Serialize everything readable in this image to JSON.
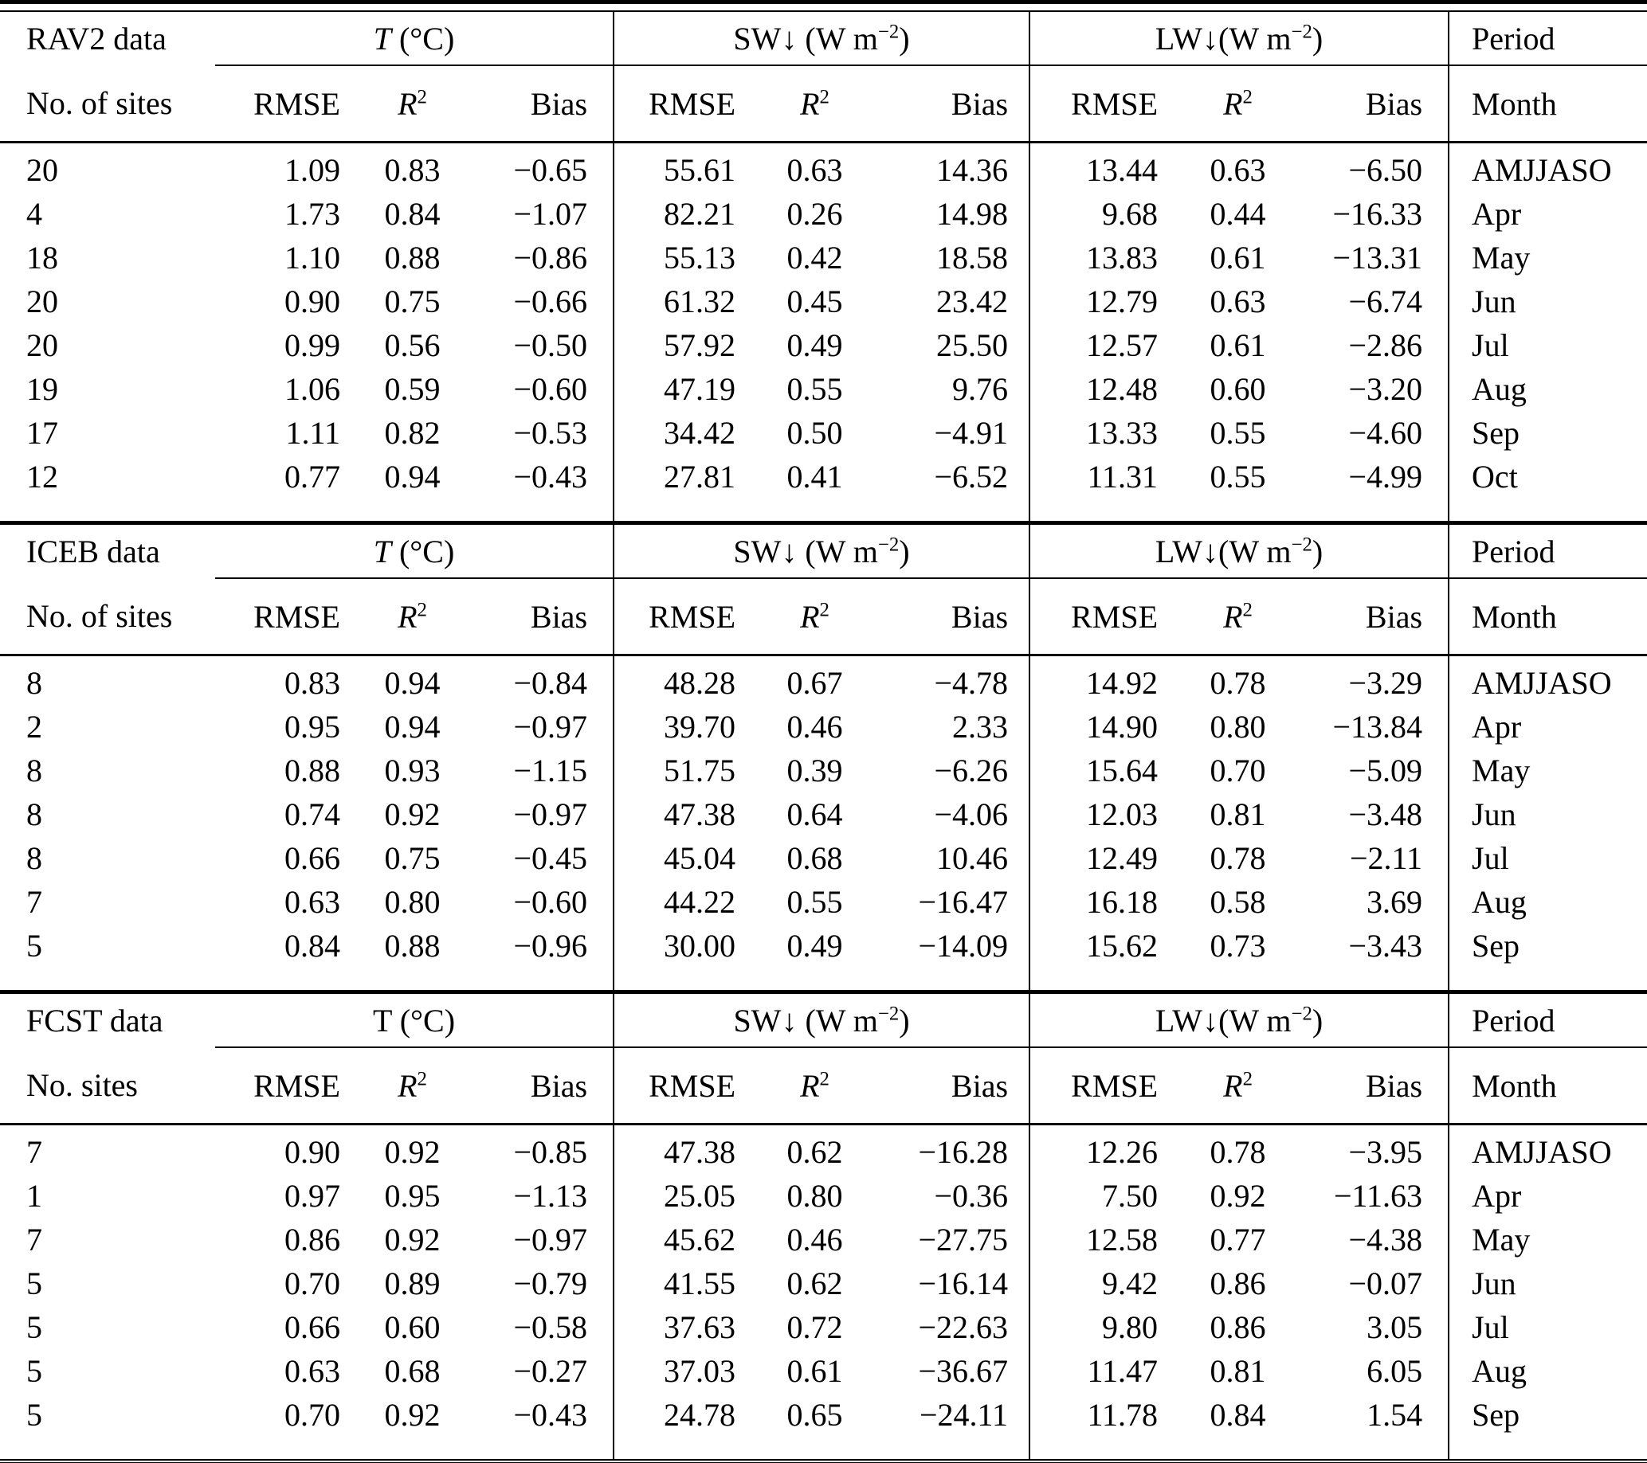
{
  "table": {
    "columns": {
      "rmse": "RMSE",
      "r2_base": "R",
      "r2_sup": "2",
      "bias": "Bias"
    },
    "groups": {
      "t_base": "T",
      "t_unit": "(°C)",
      "sw_prefix": "SW↓ (W m",
      "sw_sup": "−2",
      "sw_suffix": ")",
      "lw_prefix": "LW↓(W m",
      "lw_sup": "−2",
      "lw_suffix": ")",
      "period": "Period",
      "month": "Month"
    },
    "sections": [
      {
        "label": "RAV2 data",
        "sites_label": "No. of sites",
        "rows": [
          [
            "20",
            "1.09",
            "0.83",
            "−0.65",
            "55.61",
            "0.63",
            "14.36",
            "13.44",
            "0.63",
            "−6.50",
            "AMJJASO"
          ],
          [
            "4",
            "1.73",
            "0.84",
            "−1.07",
            "82.21",
            "0.26",
            "14.98",
            "9.68",
            "0.44",
            "−16.33",
            "Apr"
          ],
          [
            "18",
            "1.10",
            "0.88",
            "−0.86",
            "55.13",
            "0.42",
            "18.58",
            "13.83",
            "0.61",
            "−13.31",
            "May"
          ],
          [
            "20",
            "0.90",
            "0.75",
            "−0.66",
            "61.32",
            "0.45",
            "23.42",
            "12.79",
            "0.63",
            "−6.74",
            "Jun"
          ],
          [
            "20",
            "0.99",
            "0.56",
            "−0.50",
            "57.92",
            "0.49",
            "25.50",
            "12.57",
            "0.61",
            "−2.86",
            "Jul"
          ],
          [
            "19",
            "1.06",
            "0.59",
            "−0.60",
            "47.19",
            "0.55",
            "9.76",
            "12.48",
            "0.60",
            "−3.20",
            "Aug"
          ],
          [
            "17",
            "1.11",
            "0.82",
            "−0.53",
            "34.42",
            "0.50",
            "−4.91",
            "13.33",
            "0.55",
            "−4.60",
            "Sep"
          ],
          [
            "12",
            "0.77",
            "0.94",
            "−0.43",
            "27.81",
            "0.41",
            "−6.52",
            "11.31",
            "0.55",
            "−4.99",
            "Oct"
          ]
        ]
      },
      {
        "label": "ICEB data",
        "sites_label": "No. of sites",
        "rows": [
          [
            "8",
            "0.83",
            "0.94",
            "−0.84",
            "48.28",
            "0.67",
            "−4.78",
            "14.92",
            "0.78",
            "−3.29",
            "AMJJASO"
          ],
          [
            "2",
            "0.95",
            "0.94",
            "−0.97",
            "39.70",
            "0.46",
            "2.33",
            "14.90",
            "0.80",
            "−13.84",
            "Apr"
          ],
          [
            "8",
            "0.88",
            "0.93",
            "−1.15",
            "51.75",
            "0.39",
            "−6.26",
            "15.64",
            "0.70",
            "−5.09",
            "May"
          ],
          [
            "8",
            "0.74",
            "0.92",
            "−0.97",
            "47.38",
            "0.64",
            "−4.06",
            "12.03",
            "0.81",
            "−3.48",
            "Jun"
          ],
          [
            "8",
            "0.66",
            "0.75",
            "−0.45",
            "45.04",
            "0.68",
            "10.46",
            "12.49",
            "0.78",
            "−2.11",
            "Jul"
          ],
          [
            "7",
            "0.63",
            "0.80",
            "−0.60",
            "44.22",
            "0.55",
            "−16.47",
            "16.18",
            "0.58",
            "3.69",
            "Aug"
          ],
          [
            "5",
            "0.84",
            "0.88",
            "−0.96",
            "30.00",
            "0.49",
            "−14.09",
            "15.62",
            "0.73",
            "−3.43",
            "Sep"
          ]
        ]
      },
      {
        "label": "FCST data",
        "sites_label": "No. sites",
        "rows": [
          [
            "7",
            "0.90",
            "0.92",
            "−0.85",
            "47.38",
            "0.62",
            "−16.28",
            "12.26",
            "0.78",
            "−3.95",
            "AMJJASO"
          ],
          [
            "1",
            "0.97",
            "0.95",
            "−1.13",
            "25.05",
            "0.80",
            "−0.36",
            "7.50",
            "0.92",
            "−11.63",
            "Apr"
          ],
          [
            "7",
            "0.86",
            "0.92",
            "−0.97",
            "45.62",
            "0.46",
            "−27.75",
            "12.58",
            "0.77",
            "−4.38",
            "May"
          ],
          [
            "5",
            "0.70",
            "0.89",
            "−0.79",
            "41.55",
            "0.62",
            "−16.14",
            "9.42",
            "0.86",
            "−0.07",
            "Jun"
          ],
          [
            "5",
            "0.66",
            "0.60",
            "−0.58",
            "37.63",
            "0.72",
            "−22.63",
            "9.80",
            "0.86",
            "3.05",
            "Jul"
          ],
          [
            "5",
            "0.63",
            "0.68",
            "−0.27",
            "37.03",
            "0.61",
            "−36.67",
            "11.47",
            "0.81",
            "6.05",
            "Aug"
          ],
          [
            "5",
            "0.70",
            "0.92",
            "−0.43",
            "24.78",
            "0.65",
            "−24.11",
            "11.78",
            "0.84",
            "1.54",
            "Sep"
          ]
        ]
      }
    ]
  }
}
